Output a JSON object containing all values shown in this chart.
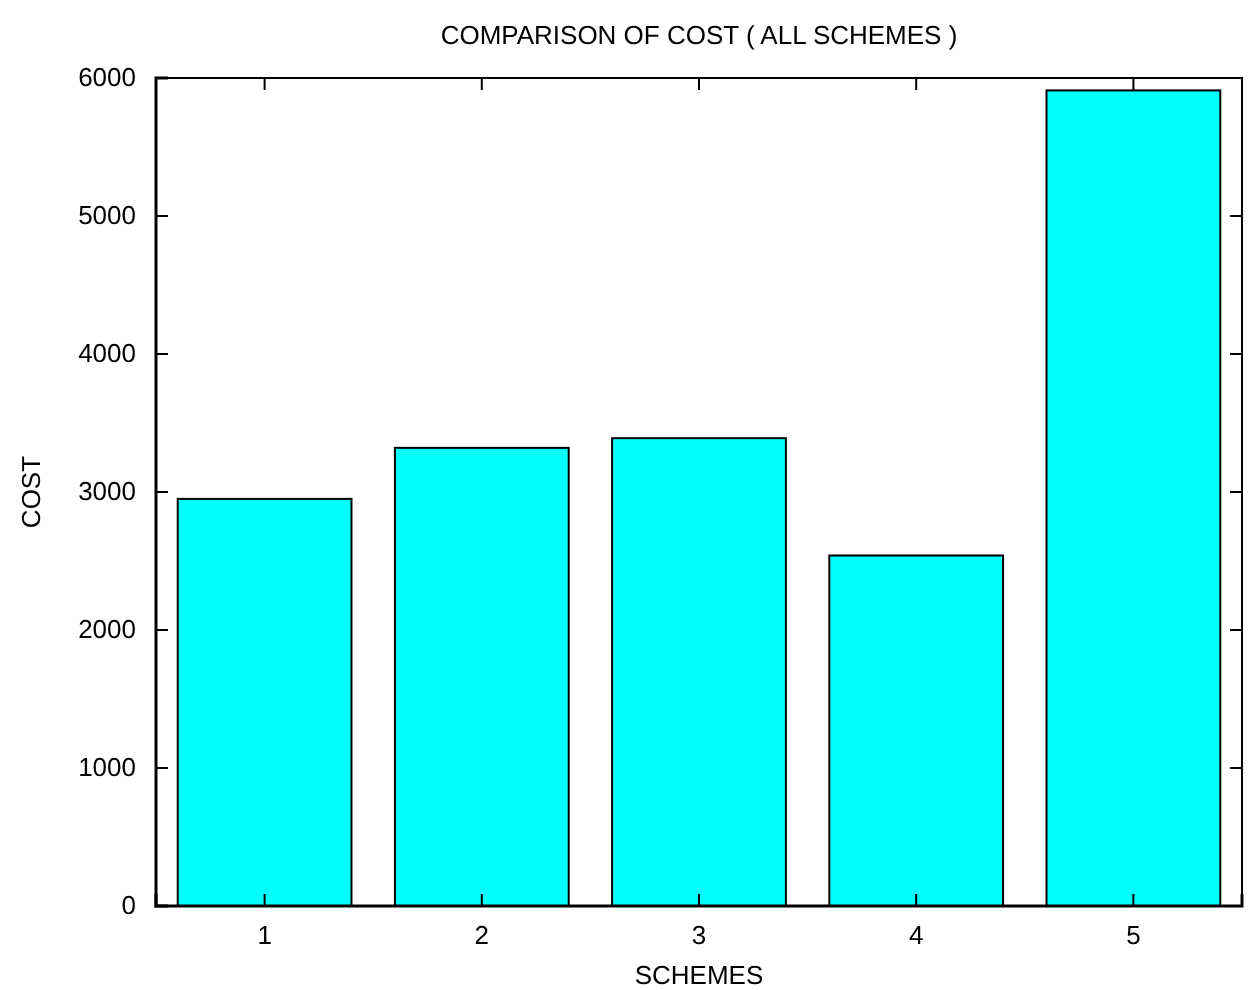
{
  "chart_data": {
    "type": "bar",
    "title": "COMPARISON OF COST ( ALL SCHEMES )",
    "xlabel": "SCHEMES",
    "ylabel": "COST",
    "categories": [
      "1",
      "2",
      "3",
      "4",
      "5"
    ],
    "values": [
      2950,
      3320,
      3390,
      2540,
      5910
    ],
    "color": "#00ffff",
    "ylim": [
      0,
      6000
    ],
    "yticks": [
      0,
      1000,
      2000,
      3000,
      4000,
      5000,
      6000
    ],
    "grid": false
  }
}
